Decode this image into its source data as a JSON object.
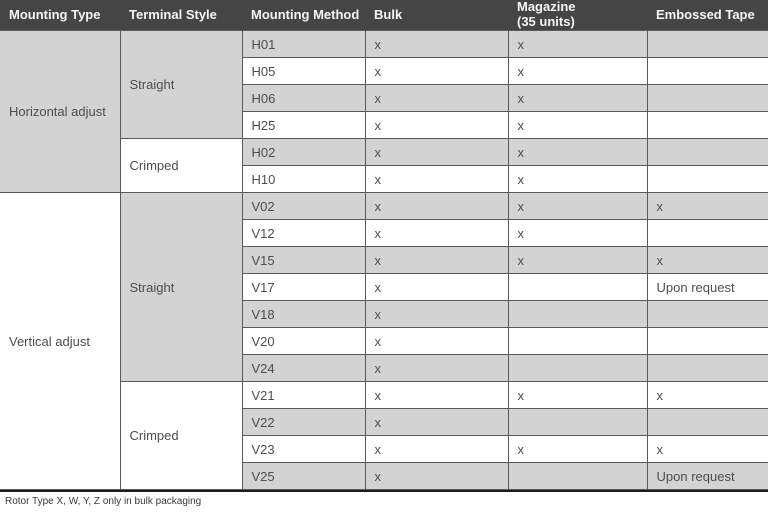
{
  "colors": {
    "header_bg": "#454545",
    "header_text": "#f5f5f5",
    "row_gray": "#d3d3d3",
    "row_white": "#ffffff",
    "grid_border": "#59595b",
    "cell_text": "#4d4d4d",
    "bottom_rule": "#1b1b1b"
  },
  "table": {
    "columns": [
      {
        "key": "mounting_type",
        "label": "Mounting Type"
      },
      {
        "key": "terminal_style",
        "label": "Terminal Style"
      },
      {
        "key": "mounting_method",
        "label": "Mounting Method"
      },
      {
        "key": "bulk",
        "label": "Bulk"
      },
      {
        "key": "magazine",
        "label": "Magazine\n(35 units)"
      },
      {
        "key": "embossed_tape",
        "label": "Embossed Tape"
      }
    ],
    "groups": [
      {
        "mounting_type": "Horizontal adjust",
        "shade": "gray",
        "terminal_groups": [
          {
            "style": "Straight",
            "shade": "gray",
            "rows": [
              {
                "method": "H01",
                "bulk": "x",
                "magazine": "x",
                "embossed": ""
              },
              {
                "method": "H05",
                "bulk": "x",
                "magazine": "x",
                "embossed": ""
              },
              {
                "method": "H06",
                "bulk": "x",
                "magazine": "x",
                "embossed": ""
              },
              {
                "method": "H25",
                "bulk": "x",
                "magazine": "x",
                "embossed": ""
              }
            ]
          },
          {
            "style": "Crimped",
            "shade": "white",
            "rows": [
              {
                "method": "H02",
                "bulk": "x",
                "magazine": "x",
                "embossed": ""
              },
              {
                "method": "H10",
                "bulk": "x",
                "magazine": "x",
                "embossed": ""
              }
            ]
          }
        ]
      },
      {
        "mounting_type": "Vertical adjust",
        "shade": "white",
        "terminal_groups": [
          {
            "style": "Straight",
            "shade": "gray",
            "rows": [
              {
                "method": "V02",
                "bulk": "x",
                "magazine": "x",
                "embossed": "x"
              },
              {
                "method": "V12",
                "bulk": "x",
                "magazine": "x",
                "embossed": ""
              },
              {
                "method": "V15",
                "bulk": "x",
                "magazine": "x",
                "embossed": "x"
              },
              {
                "method": "V17",
                "bulk": "x",
                "magazine": "",
                "embossed": "Upon request"
              },
              {
                "method": "V18",
                "bulk": "x",
                "magazine": "",
                "embossed": ""
              },
              {
                "method": "V20",
                "bulk": "x",
                "magazine": "",
                "embossed": ""
              },
              {
                "method": "V24",
                "bulk": "x",
                "magazine": "",
                "embossed": ""
              }
            ]
          },
          {
            "style": "Crimped",
            "shade": "white",
            "rows": [
              {
                "method": "V21",
                "bulk": "x",
                "magazine": "x",
                "embossed": "x"
              },
              {
                "method": "V22",
                "bulk": "x",
                "magazine": "",
                "embossed": ""
              },
              {
                "method": "V23",
                "bulk": "x",
                "magazine": "x",
                "embossed": "x"
              },
              {
                "method": "V25",
                "bulk": "x",
                "magazine": "",
                "embossed": "Upon request"
              }
            ]
          }
        ]
      }
    ]
  },
  "footnote": "Rotor Type X, W, Y, Z only in bulk packaging"
}
